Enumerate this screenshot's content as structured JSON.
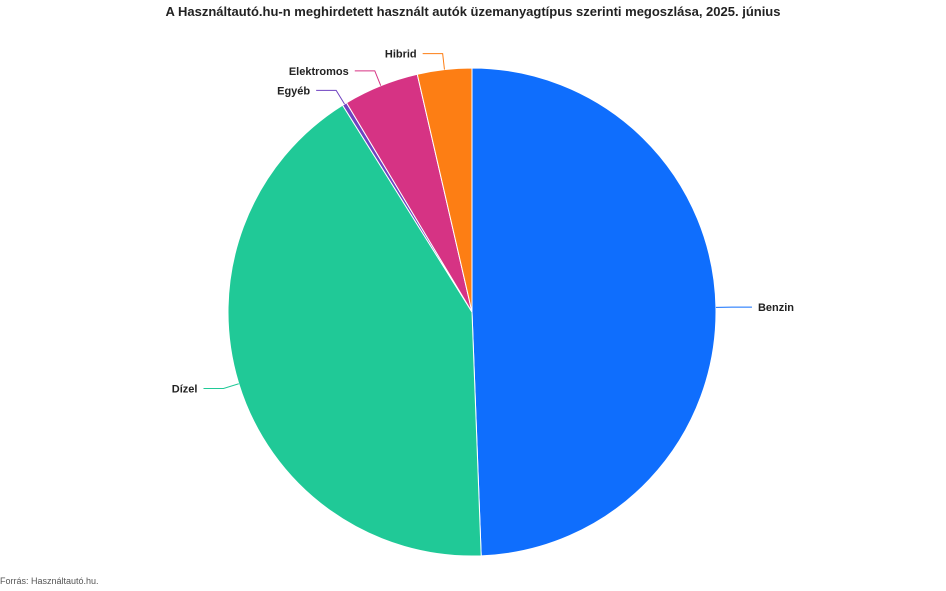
{
  "chart_data": {
    "type": "pie",
    "title": "A Használtautó.hu-n meghirdetett használt autók üzemanyagtípus szerinti megoszlása, 2025. június",
    "source": "Forrás: Használtautó.hu.",
    "slices": [
      {
        "label": "Benzin",
        "value": 49.4,
        "color": "#0f6efd"
      },
      {
        "label": "Dízel",
        "value": 41.7,
        "color": "#20c997"
      },
      {
        "label": "Egyéb",
        "value": 0.3,
        "color": "#6f42c1"
      },
      {
        "label": "Elektromos",
        "value": 5.0,
        "color": "#d63384"
      },
      {
        "label": "Hibrid",
        "value": 3.6,
        "color": "#fd7e14"
      }
    ]
  }
}
